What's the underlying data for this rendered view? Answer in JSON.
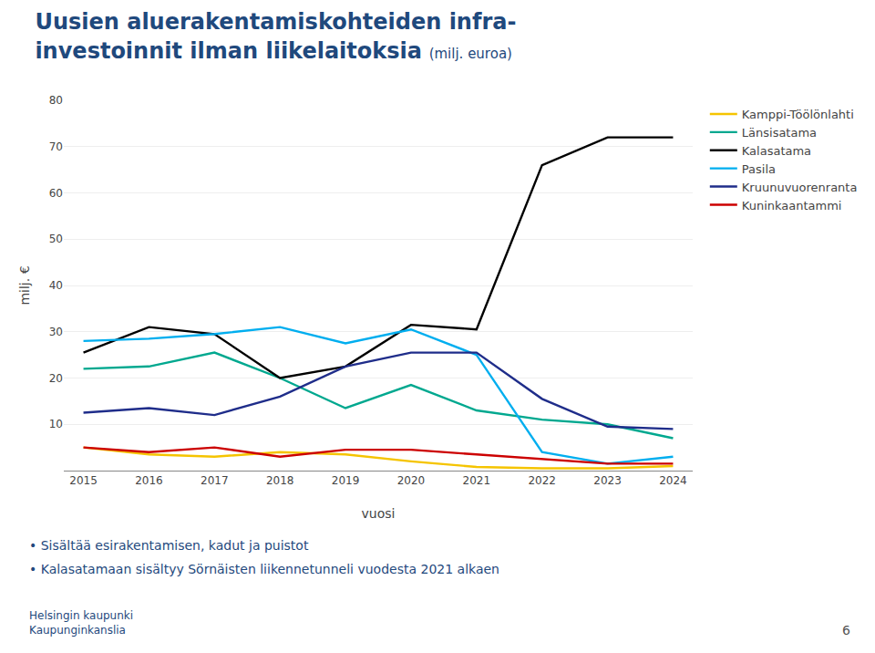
{
  "chart_data": {
    "type": "line",
    "title": "Uusien aluerakentamiskohteiden infra-\ninvestoinnit ilman liikelaitoksia",
    "subtitle": "(milj. euroa)",
    "ylabel": "milj. €",
    "xlabel": "vuosi",
    "x": [
      2015,
      2016,
      2017,
      2018,
      2019,
      2020,
      2021,
      2022,
      2023,
      2024
    ],
    "series": [
      {
        "name": "Kamppi-Töölönlahti",
        "color": "#F5C400",
        "values": [
          5.0,
          3.5,
          3.0,
          4.0,
          3.5,
          2.0,
          0.8,
          0.5,
          0.5,
          1.0
        ]
      },
      {
        "name": "Länsisatama",
        "color": "#00A88F",
        "values": [
          22.0,
          22.5,
          25.5,
          20.0,
          13.5,
          18.5,
          13.0,
          11.0,
          10.0,
          7.0
        ]
      },
      {
        "name": "Kalasatama",
        "color": "#000000",
        "values": [
          25.5,
          31.0,
          29.5,
          20.0,
          22.5,
          31.5,
          30.5,
          66.0,
          72.0,
          72.0
        ]
      },
      {
        "name": "Pasila",
        "color": "#00AEEF",
        "values": [
          28.0,
          28.5,
          29.5,
          31.0,
          27.5,
          30.5,
          25.0,
          4.0,
          1.5,
          3.0
        ]
      },
      {
        "name": "Kruunuvuorenranta",
        "color": "#1F2D8A",
        "values": [
          12.5,
          13.5,
          12.0,
          16.0,
          22.5,
          25.5,
          25.5,
          15.5,
          9.5,
          9.0
        ]
      },
      {
        "name": "Kuninkaantammi",
        "color": "#CC0000",
        "values": [
          5.0,
          4.0,
          5.0,
          3.0,
          4.5,
          4.5,
          3.5,
          2.5,
          1.5,
          1.5
        ]
      }
    ],
    "xlim": [
      2014.7,
      2024.3
    ],
    "xticks": [
      2015,
      2016,
      2017,
      2018,
      2019,
      2020,
      2021,
      2022,
      2023,
      2024
    ],
    "ylim": [
      0,
      80
    ],
    "yticks": [
      10,
      20,
      30,
      40,
      50,
      60,
      70,
      80
    ],
    "grid": "y",
    "legend": "upper right",
    "annotations": [
      "• Sisältää esirakentamisen, kadut ja puistot",
      "• Kalasatamaan sisältyy Sörnäisten liikennetunneli vuodesta 2021 alkaen"
    ],
    "footer": [
      "Helsingin kaupunki",
      "Kaupunginkanslia"
    ],
    "page_number": "6"
  }
}
